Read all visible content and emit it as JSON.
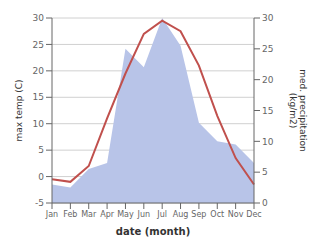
{
  "chart_data": {
    "type": "line",
    "xlabel": "date (month)",
    "ylabel": "max temp (C)",
    "y2label": "med. precipitation\n(kg/m2)",
    "categories": [
      "Jan",
      "Feb",
      "Mar",
      "Apr",
      "May",
      "Jun",
      "Jul",
      "Aug",
      "Sep",
      "Oct",
      "Nov",
      "Dec"
    ],
    "series": [
      {
        "type": "area",
        "axis": "y2",
        "color": "#b8c4e8",
        "values": [
          3.0,
          2.5,
          5.5,
          6.5,
          25.0,
          22.0,
          30.0,
          25.5,
          13.0,
          10.0,
          9.5,
          6.5
        ]
      },
      {
        "type": "line",
        "color": "#c0504d",
        "values": [
          -0.5,
          -1.0,
          2.0,
          11.0,
          19.5,
          27.0,
          29.5,
          27.5,
          21.0,
          11.5,
          3.5,
          -1.5
        ]
      }
    ],
    "ylim": [
      -5,
      30
    ],
    "yticks": [
      -5,
      0,
      5,
      10,
      15,
      20,
      25,
      30
    ],
    "y2lim": [
      0,
      30
    ],
    "y2ticks": [
      0,
      5,
      10,
      15,
      20,
      25,
      30
    ],
    "grid": true
  }
}
